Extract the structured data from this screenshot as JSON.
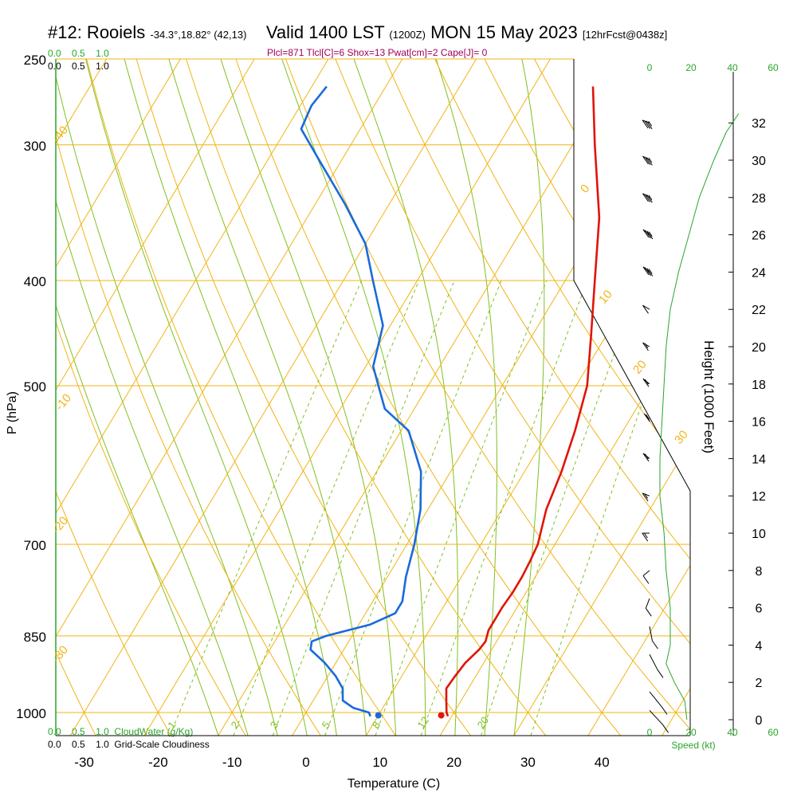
{
  "header": {
    "station": "#12: Rooiels",
    "coords": "-34.3°,18.82° (42,13)",
    "valid": "Valid 1400 LST",
    "zulu": "(1200Z)",
    "date": "MON 15 May 2023",
    "forecast": "[12hrFcst@0438z]",
    "params": "Plcl=871 Tlcl[C]=6 Shox=13 Pwat[cm]=2 Cape[J]= 0"
  },
  "chart_data": {
    "type": "line",
    "title": "#12: Rooiels",
    "xlabel": "Temperature (C)",
    "ylabel": "P (hPa)",
    "y2label": "Height (1000 Feet)",
    "xlim": [
      -35,
      45
    ],
    "ylim": [
      1025,
      250
    ],
    "x_ticks": [
      -30,
      -20,
      -10,
      0,
      10,
      20,
      30,
      40
    ],
    "p_ticks": [
      250,
      300,
      400,
      500,
      700,
      850,
      1000
    ],
    "height_ticks": [
      0,
      2,
      4,
      6,
      8,
      10,
      12,
      14,
      16,
      18,
      20,
      22,
      24,
      26,
      28,
      30,
      32
    ],
    "top_scale_labels": [
      "0.0",
      "0.5",
      "1.0"
    ],
    "bottom_scale_labels": [
      "0.0",
      "0.5",
      "1.0"
    ],
    "cloudwater_label": "CloudWater (g/Kg)",
    "cloudiness_label": "Grid-Scale Cloudiness",
    "wind_axis_labels": [
      "0",
      "20",
      "40",
      "60"
    ],
    "wind_axis_title": "Speed (kt)",
    "isotherm_labels": [
      {
        "t": 0,
        "text": "0"
      },
      {
        "t": 10,
        "text": "10"
      },
      {
        "t": 20,
        "text": "20"
      },
      {
        "t": 30,
        "text": "30"
      },
      {
        "t": -10,
        "text": "-10"
      },
      {
        "t": -20,
        "text": "-20"
      },
      {
        "t": -30,
        "text": "-30"
      },
      {
        "t": -40,
        "text": "-40"
      }
    ],
    "mixing_ratio_labels": [
      {
        "w": 1,
        "text": "1"
      },
      {
        "w": 2,
        "text": "2"
      },
      {
        "w": 3,
        "text": "3"
      },
      {
        "w": 5,
        "text": "5"
      },
      {
        "w": 8,
        "text": "8"
      },
      {
        "w": 12,
        "text": "12"
      },
      {
        "w": 20,
        "text": "20"
      }
    ],
    "series": [
      {
        "name": "Temperature",
        "color": "#e0140a",
        "points": [
          {
            "p": 1008,
            "t": 19.5
          },
          {
            "p": 1000,
            "t": 19.0
          },
          {
            "p": 975,
            "t": 18.0
          },
          {
            "p": 950,
            "t": 17.0
          },
          {
            "p": 925,
            "t": 17.2
          },
          {
            "p": 900,
            "t": 17.5
          },
          {
            "p": 875,
            "t": 18.3
          },
          {
            "p": 860,
            "t": 18.5
          },
          {
            "p": 840,
            "t": 18.0
          },
          {
            "p": 820,
            "t": 18.0
          },
          {
            "p": 800,
            "t": 18.0
          },
          {
            "p": 775,
            "t": 18.2
          },
          {
            "p": 750,
            "t": 18.2
          },
          {
            "p": 725,
            "t": 18.0
          },
          {
            "p": 700,
            "t": 17.7
          },
          {
            "p": 650,
            "t": 16.0
          },
          {
            "p": 600,
            "t": 15.0
          },
          {
            "p": 550,
            "t": 13.5
          },
          {
            "p": 500,
            "t": 11.5
          },
          {
            "p": 450,
            "t": 8.0
          },
          {
            "p": 400,
            "t": 4.0
          },
          {
            "p": 350,
            "t": -0.5
          },
          {
            "p": 300,
            "t": -7.0
          },
          {
            "p": 265,
            "t": -12.0
          }
        ]
      },
      {
        "name": "Dewpoint",
        "color": "#1a6adc",
        "points": [
          {
            "p": 1008,
            "t": 9.0
          },
          {
            "p": 1000,
            "t": 8.5
          },
          {
            "p": 990,
            "t": 6.0
          },
          {
            "p": 975,
            "t": 4.0
          },
          {
            "p": 950,
            "t": 3.0
          },
          {
            "p": 925,
            "t": 1.0
          },
          {
            "p": 900,
            "t": -1.5
          },
          {
            "p": 875,
            "t": -4.5
          },
          {
            "p": 860,
            "t": -5.0
          },
          {
            "p": 850,
            "t": -3.5
          },
          {
            "p": 830,
            "t": 1.5
          },
          {
            "p": 810,
            "t": 4.0
          },
          {
            "p": 790,
            "t": 4.0
          },
          {
            "p": 750,
            "t": 2.5
          },
          {
            "p": 700,
            "t": 1.0
          },
          {
            "p": 650,
            "t": -1.0
          },
          {
            "p": 600,
            "t": -4.0
          },
          {
            "p": 550,
            "t": -9.0
          },
          {
            "p": 525,
            "t": -14.0
          },
          {
            "p": 480,
            "t": -19.0
          },
          {
            "p": 440,
            "t": -21.0
          },
          {
            "p": 400,
            "t": -26.0
          },
          {
            "p": 370,
            "t": -30.0
          },
          {
            "p": 340,
            "t": -36.0
          },
          {
            "p": 310,
            "t": -43.0
          },
          {
            "p": 290,
            "t": -48.0
          },
          {
            "p": 276,
            "t": -48.5
          },
          {
            "p": 265,
            "t": -48.0
          }
        ]
      }
    ],
    "surface_points": [
      {
        "name": "Surface temperature",
        "p": 1006,
        "t": 18.5,
        "color": "#e0140a"
      },
      {
        "name": "Surface dewpoint",
        "p": 1006,
        "t": 10.0,
        "color": "#1a6adc"
      }
    ],
    "wind_profile": [
      {
        "h": 0.5,
        "speed": 10,
        "dir": 160
      },
      {
        "h": 1.5,
        "speed": 10,
        "dir": 165
      },
      {
        "h": 3.5,
        "speed": 10,
        "dir": 180
      },
      {
        "h": 5.0,
        "speed": 10,
        "dir": 200
      },
      {
        "h": 6.5,
        "speed": 10,
        "dir": 230
      },
      {
        "h": 8.0,
        "speed": 10,
        "dir": 250
      },
      {
        "h": 10.0,
        "speed": 5,
        "dir": 270
      },
      {
        "h": 12.0,
        "speed": 5,
        "dir": 280
      },
      {
        "h": 14.0,
        "speed": 5,
        "dir": 290
      },
      {
        "h": 16.0,
        "speed": 5,
        "dir": 300
      },
      {
        "h": 18.0,
        "speed": 5,
        "dir": 290
      },
      {
        "h": 20.0,
        "speed": 5,
        "dir": 285
      },
      {
        "h": 22.0,
        "speed": 10,
        "dir": 285
      },
      {
        "h": 24.0,
        "speed": 25,
        "dir": 290
      },
      {
        "h": 26.0,
        "speed": 25,
        "dir": 290
      },
      {
        "h": 28.0,
        "speed": 25,
        "dir": 285
      },
      {
        "h": 30.0,
        "speed": 25,
        "dir": 285
      },
      {
        "h": 32.0,
        "speed": 25,
        "dir": 280
      }
    ],
    "wind_speed_profile": [
      {
        "h": 0,
        "speed": 18
      },
      {
        "h": 1,
        "speed": 17
      },
      {
        "h": 2,
        "speed": 12
      },
      {
        "h": 3,
        "speed": 8
      },
      {
        "h": 4,
        "speed": 10
      },
      {
        "h": 6,
        "speed": 10
      },
      {
        "h": 8,
        "speed": 8
      },
      {
        "h": 10,
        "speed": 7
      },
      {
        "h": 12,
        "speed": 5
      },
      {
        "h": 14,
        "speed": 5
      },
      {
        "h": 16,
        "speed": 6
      },
      {
        "h": 18,
        "speed": 7
      },
      {
        "h": 20,
        "speed": 8
      },
      {
        "h": 22,
        "speed": 10
      },
      {
        "h": 24,
        "speed": 14
      },
      {
        "h": 26,
        "speed": 19
      },
      {
        "h": 28,
        "speed": 24
      },
      {
        "h": 30,
        "speed": 31
      },
      {
        "h": 31.5,
        "speed": 37
      },
      {
        "h": 32.5,
        "speed": 43
      }
    ]
  }
}
